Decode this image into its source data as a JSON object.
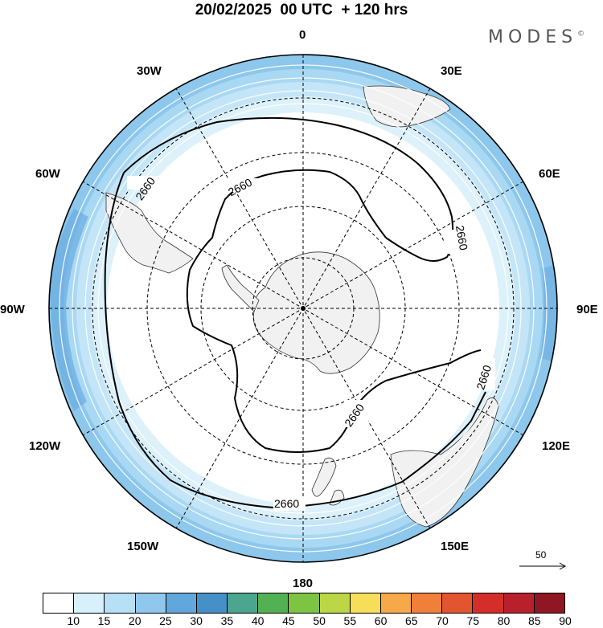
{
  "title": "20/02/2025  00 UTC  + 120 hrs",
  "brand": "MODES",
  "brand_mark": "©",
  "map": {
    "projection": "south-polar-stereographic",
    "center": "South Pole",
    "longitude_labels": [
      "0",
      "30E",
      "60E",
      "90E",
      "120E",
      "150E",
      "180",
      "150W",
      "120W",
      "90W",
      "60W",
      "30W"
    ],
    "contour_labels": [
      "2660",
      "2660",
      "2660",
      "2660",
      "2660",
      "2660"
    ],
    "contour_value": 2660,
    "colors": {
      "land": "#f1f1f1",
      "coastline": "#333333",
      "grid": "#000000"
    }
  },
  "reference_vector": {
    "label": "50"
  },
  "colorbar": {
    "labels": [
      "10",
      "15",
      "20",
      "25",
      "30",
      "35",
      "40",
      "45",
      "50",
      "55",
      "60",
      "65",
      "70",
      "75",
      "80",
      "85",
      "90"
    ],
    "colors": [
      "#ffffff",
      "#d7f0fb",
      "#b5e0f5",
      "#8fc8ec",
      "#62a7dc",
      "#4690c7",
      "#4ba58f",
      "#52b253",
      "#7cc441",
      "#bcd646",
      "#f6de58",
      "#f6a948",
      "#f07f3a",
      "#e3552f",
      "#d52e2a",
      "#b8202b",
      "#8f1622"
    ]
  }
}
